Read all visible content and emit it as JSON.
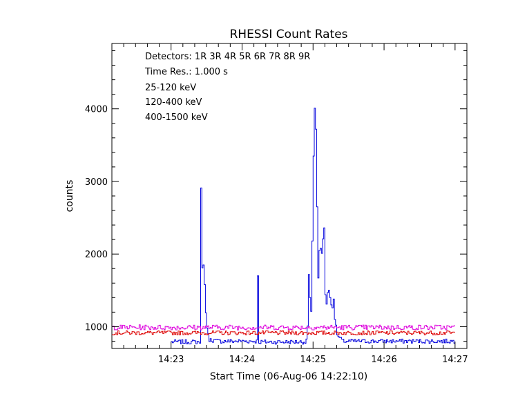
{
  "chart_data": {
    "type": "line",
    "title": "RHESSI Count Rates",
    "xlabel": "Start Time (06-Aug-06 14:22:10)",
    "ylabel": "counts",
    "xlim_seconds": [
      10,
      310
    ],
    "ylim": [
      700,
      4900
    ],
    "x_ticks": [
      {
        "label": "14:23",
        "t": 60
      },
      {
        "label": "14:24",
        "t": 120
      },
      {
        "label": "14:25",
        "t": 180
      },
      {
        "label": "14:26",
        "t": 240
      },
      {
        "label": "14:27",
        "t": 300
      }
    ],
    "y_ticks": [
      1000,
      2000,
      3000,
      4000
    ],
    "annotations": {
      "detectors": "Detectors:  1R 3R 4R 5R 6R 7R 8R 9R",
      "time_res": "Time Res.: 1.000 s"
    },
    "grid": false,
    "legend_position": "top-left",
    "series": [
      {
        "name": "25-120 keV",
        "color": "#0000dd",
        "baseline": 790,
        "noise": 30,
        "points": [
          [
            60,
            790
          ],
          [
            84,
            790
          ],
          [
            85,
            2910
          ],
          [
            86,
            1810
          ],
          [
            87,
            1850
          ],
          [
            88,
            1580
          ],
          [
            89,
            1190
          ],
          [
            90,
            980
          ],
          [
            91,
            880
          ],
          [
            92,
            820
          ],
          [
            100,
            800
          ],
          [
            132,
            800
          ],
          [
            133,
            1700
          ],
          [
            134,
            790
          ],
          [
            172,
            790
          ],
          [
            174,
            800
          ],
          [
            175,
            1010
          ],
          [
            176,
            1720
          ],
          [
            177,
            1400
          ],
          [
            178,
            1210
          ],
          [
            179,
            2180
          ],
          [
            180,
            3350
          ],
          [
            181,
            4010
          ],
          [
            182,
            3720
          ],
          [
            183,
            2650
          ],
          [
            184,
            1670
          ],
          [
            185,
            2050
          ],
          [
            186,
            2080
          ],
          [
            187,
            2010
          ],
          [
            188,
            2210
          ],
          [
            189,
            2360
          ],
          [
            190,
            1440
          ],
          [
            191,
            1310
          ],
          [
            192,
            1470
          ],
          [
            193,
            1500
          ],
          [
            194,
            1400
          ],
          [
            195,
            1300
          ],
          [
            196,
            1260
          ],
          [
            197,
            1380
          ],
          [
            198,
            1100
          ],
          [
            199,
            1020
          ],
          [
            200,
            900
          ],
          [
            201,
            860
          ],
          [
            205,
            800
          ],
          [
            300,
            800
          ]
        ]
      },
      {
        "name": "120-400 keV",
        "color": "#dd00dd",
        "baseline": 990,
        "noise": 35,
        "points": [
          [
            10,
            990
          ],
          [
            300,
            990
          ]
        ]
      },
      {
        "name": "400-1500 keV",
        "color": "#dd0000",
        "baseline": 915,
        "noise": 28,
        "points": [
          [
            10,
            915
          ],
          [
            300,
            915
          ]
        ]
      }
    ]
  }
}
